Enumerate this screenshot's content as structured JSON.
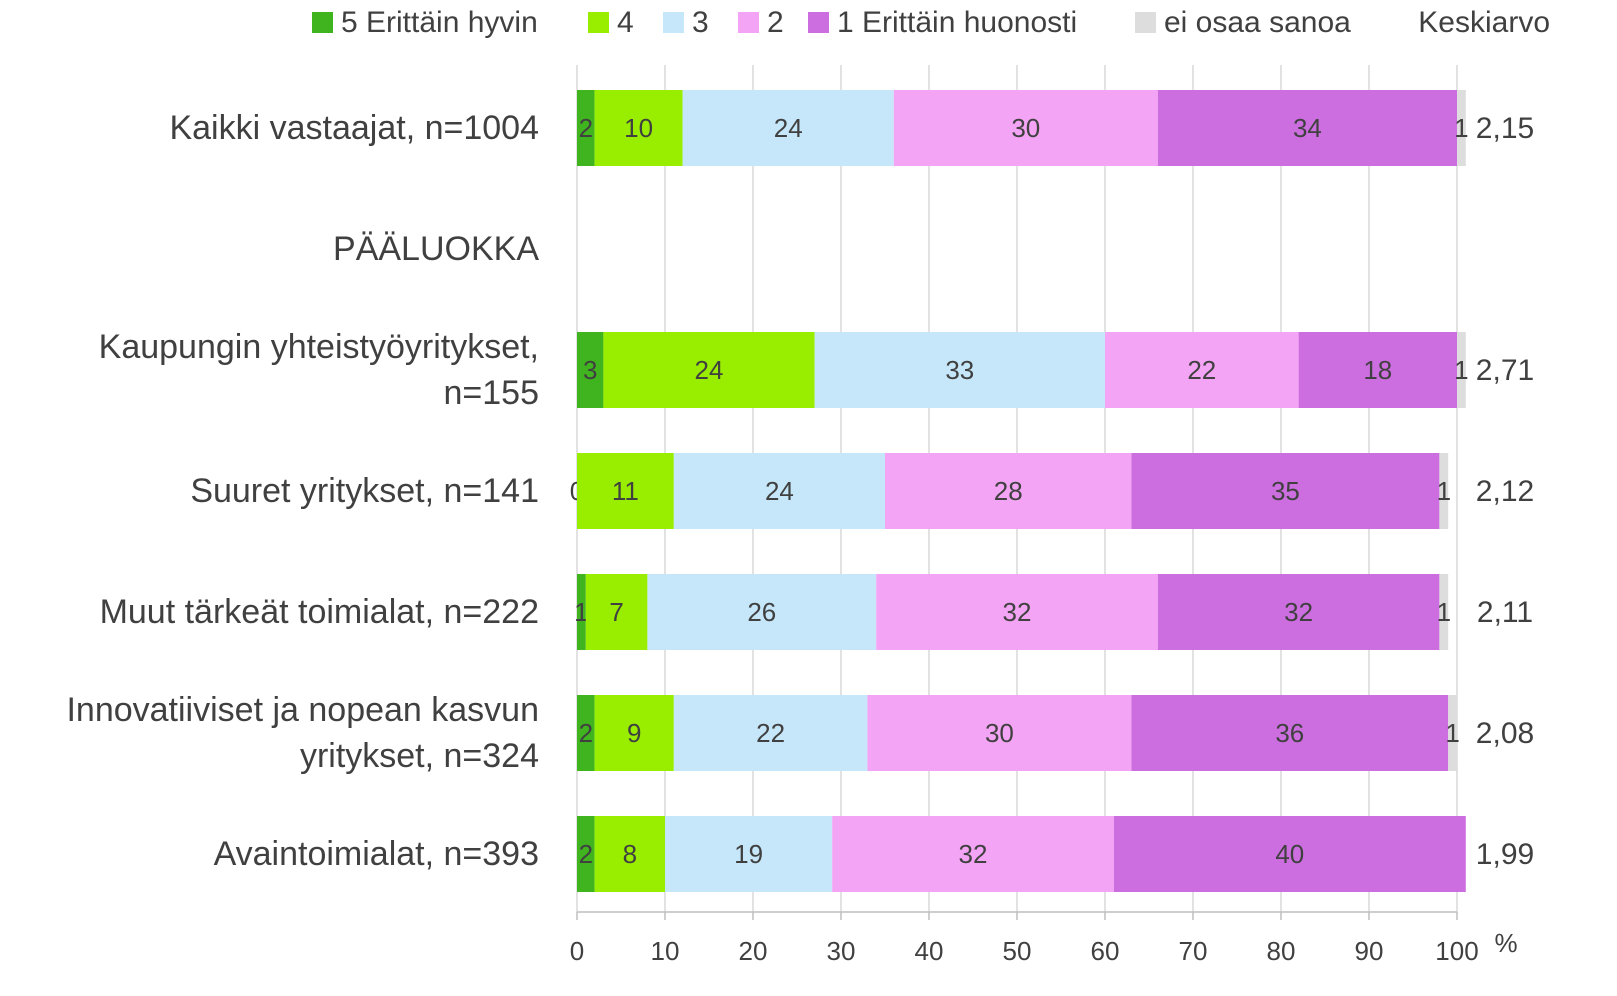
{
  "chart_data": {
    "type": "stacked-bar-horizontal",
    "categories": [
      "Kaikki vastaajat, n=1004",
      "PÄÄLUOKKA",
      "Kaupungin yhteistyöyritykset,\nn=155",
      "Suuret yritykset, n=141",
      "Muut tärkeät toimialat, n=222",
      "Innovatiiviset ja nopean kasvun\nyritykset, n=324",
      "Avaintoimialat, n=393"
    ],
    "series": [
      {
        "name": "5 Erittäin hyvin",
        "color": "#3fb41e",
        "values": [
          2,
          null,
          3,
          0,
          1,
          2,
          2
        ]
      },
      {
        "name": "4",
        "color": "#99ee00",
        "values": [
          10,
          null,
          24,
          11,
          7,
          9,
          8
        ]
      },
      {
        "name": "3",
        "color": "#c6e7fa",
        "values": [
          24,
          null,
          33,
          24,
          26,
          22,
          19
        ]
      },
      {
        "name": "2",
        "color": "#f4a4f4",
        "values": [
          30,
          null,
          22,
          28,
          32,
          30,
          32
        ]
      },
      {
        "name": "1 Erittäin huonosti",
        "color": "#cd6ee0",
        "values": [
          34,
          null,
          18,
          35,
          32,
          36,
          40
        ]
      },
      {
        "name": "ei osaa sanoa",
        "color": "#dddddd",
        "values": [
          1,
          null,
          1,
          1,
          1,
          1,
          null
        ]
      }
    ],
    "keskiarvo": {
      "title": "Keskiarvo",
      "values": [
        2.15,
        null,
        2.71,
        2.12,
        2.11,
        2.08,
        1.99
      ],
      "value_labels": [
        "2,15",
        null,
        "2,71",
        "2,12",
        "2,11",
        "2,08",
        "1,99"
      ]
    },
    "xlim": [
      0,
      100
    ],
    "xticks": [
      0,
      10,
      20,
      30,
      40,
      50,
      60,
      70,
      80,
      90,
      100
    ],
    "xlabel": "%",
    "grid": true
  }
}
